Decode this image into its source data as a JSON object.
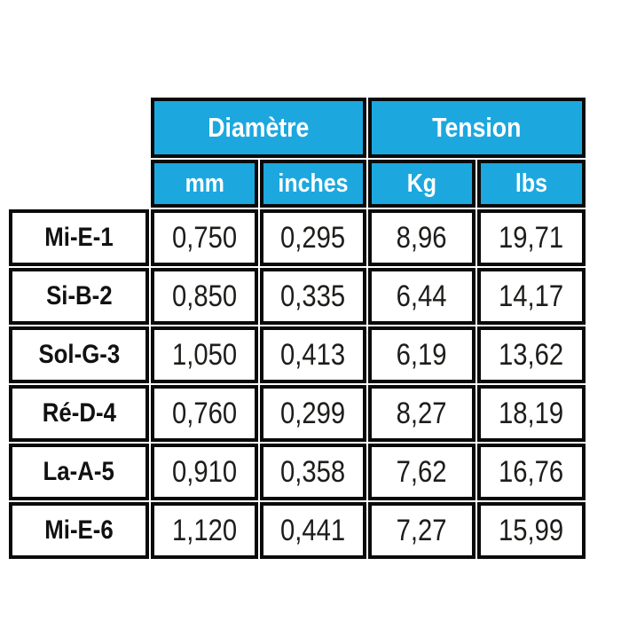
{
  "colors": {
    "header_bg": "#1ca8de",
    "header_text": "#ffffff",
    "border": "#0a0a0a",
    "body_text": "#1d1d1b",
    "page_bg": "#ffffff"
  },
  "table": {
    "column_groups": [
      {
        "label": "Diamètre",
        "span": 2
      },
      {
        "label": "Tension",
        "span": 2
      }
    ],
    "columns": [
      "mm",
      "inches",
      "Kg",
      "lbs"
    ],
    "rows": [
      {
        "label": "Mi-E-1",
        "values": [
          "0,750",
          "0,295",
          "8,96",
          "19,71"
        ]
      },
      {
        "label": "Si-B-2",
        "values": [
          "0,850",
          "0,335",
          "6,44",
          "14,17"
        ]
      },
      {
        "label": "Sol-G-3",
        "values": [
          "1,050",
          "0,413",
          "6,19",
          "13,62"
        ]
      },
      {
        "label": "Ré-D-4",
        "values": [
          "0,760",
          "0,299",
          "8,27",
          "18,19"
        ]
      },
      {
        "label": "La-A-5",
        "values": [
          "0,910",
          "0,358",
          "7,62",
          "16,76"
        ]
      },
      {
        "label": "Mi-E-6",
        "values": [
          "1,120",
          "0,441",
          "7,27",
          "15,99"
        ]
      }
    ]
  },
  "chart_data": {
    "type": "table",
    "title": "",
    "decimal_separator": ",",
    "column_groups": [
      "Diamètre",
      "Tension"
    ],
    "columns": [
      "Diamètre mm",
      "Diamètre inches",
      "Tension Kg",
      "Tension lbs"
    ],
    "row_headers": [
      "Mi-E-1",
      "Si-B-2",
      "Sol-G-3",
      "Ré-D-4",
      "La-A-5",
      "Mi-E-6"
    ],
    "rows": [
      [
        0.75,
        0.295,
        8.96,
        19.71
      ],
      [
        0.85,
        0.335,
        6.44,
        14.17
      ],
      [
        1.05,
        0.413,
        6.19,
        13.62
      ],
      [
        0.76,
        0.299,
        8.27,
        18.19
      ],
      [
        0.91,
        0.358,
        7.62,
        16.76
      ],
      [
        1.12,
        0.441,
        7.27,
        15.99
      ]
    ]
  }
}
